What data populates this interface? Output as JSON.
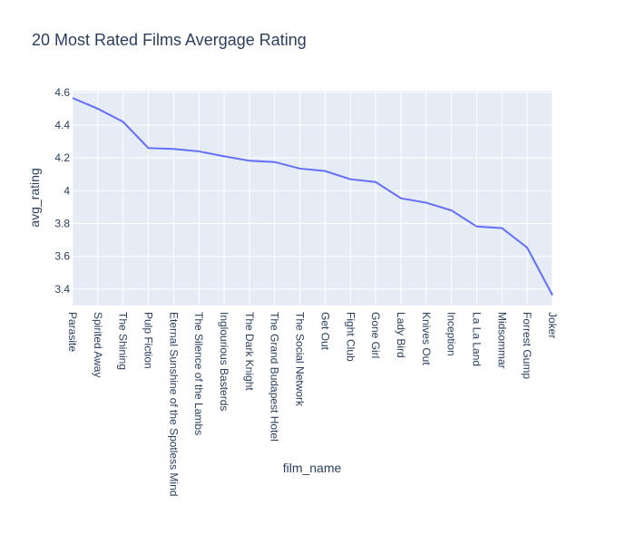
{
  "chart_data": {
    "type": "line",
    "title": "20 Most Rated Films Avergage Rating",
    "xlabel": "film_name",
    "ylabel": "avg_rating",
    "categories": [
      "Parasite",
      "Spirited Away",
      "The Shining",
      "Pulp Fiction",
      "Eternal Sunshine of the Spotless Mind",
      "The Silence of the Lambs",
      "Inglourious Basterds",
      "The Dark Knight",
      "The Grand Budapest Hotel",
      "The Social Network",
      "Get Out",
      "Fight Club",
      "Gone Girl",
      "Lady Bird",
      "Knives Out",
      "Inception",
      "La La Land",
      "Midsommar",
      "Forrest Gump",
      "Joker"
    ],
    "values": [
      4.565,
      4.5,
      4.42,
      4.26,
      4.255,
      4.24,
      4.21,
      4.183,
      4.175,
      4.135,
      4.12,
      4.07,
      4.053,
      3.954,
      3.927,
      3.88,
      3.782,
      3.772,
      3.653,
      3.363
    ],
    "ylim": [
      3.3,
      4.61
    ],
    "yticks": [
      3.4,
      3.6,
      3.8,
      4,
      4.2,
      4.4,
      4.6
    ],
    "ytick_labels": [
      "3.4",
      "3.6",
      "3.8",
      "4",
      "4.2",
      "4.4",
      "4.6"
    ],
    "grid": true,
    "line_color": "#636efa",
    "plot_bg": "#e5ecf6",
    "text_color": "#2a3f5f"
  }
}
